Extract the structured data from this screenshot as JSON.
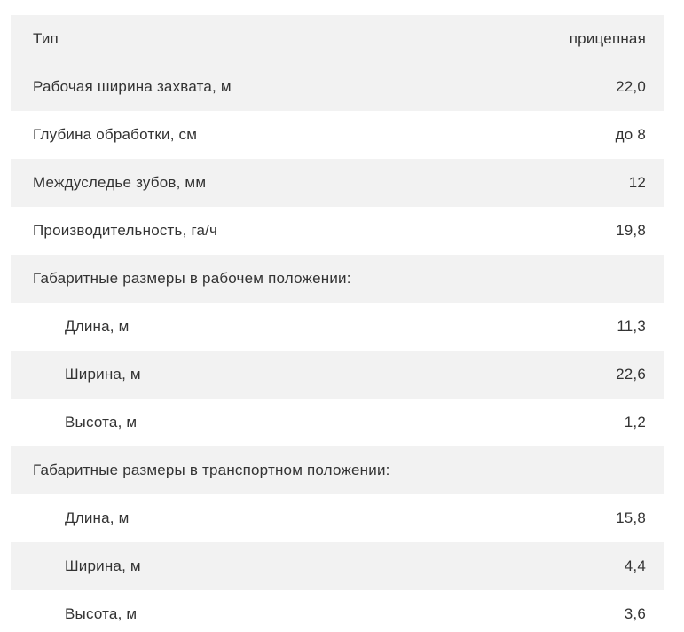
{
  "table": {
    "rows": [
      {
        "label": "Тип",
        "value": "прицепная"
      },
      {
        "label": "Рабочая ширина захвата, м",
        "value": "22,0"
      },
      {
        "label": "Глубина обработки, см",
        "value": "до 8"
      },
      {
        "label": "Междуследье зубов, мм",
        "value": "12"
      },
      {
        "label": "Производительность, га/ч",
        "value": "19,8"
      },
      {
        "label": "Габаритные размеры в рабочем положении:",
        "value": ""
      },
      {
        "label": "Длина, м",
        "value": "11,3"
      },
      {
        "label": "Ширина, м",
        "value": "22,6"
      },
      {
        "label": "Высота, м",
        "value": "1,2"
      },
      {
        "label": "Габаритные размеры в транспортном положении:",
        "value": ""
      },
      {
        "label": "Длина, м",
        "value": "15,8"
      },
      {
        "label": "Ширина, м",
        "value": "4,4"
      },
      {
        "label": "Высота, м",
        "value": "3,6"
      }
    ],
    "colors": {
      "row_shade": "#f2f2f2",
      "text": "#333333",
      "background": "#ffffff"
    }
  }
}
